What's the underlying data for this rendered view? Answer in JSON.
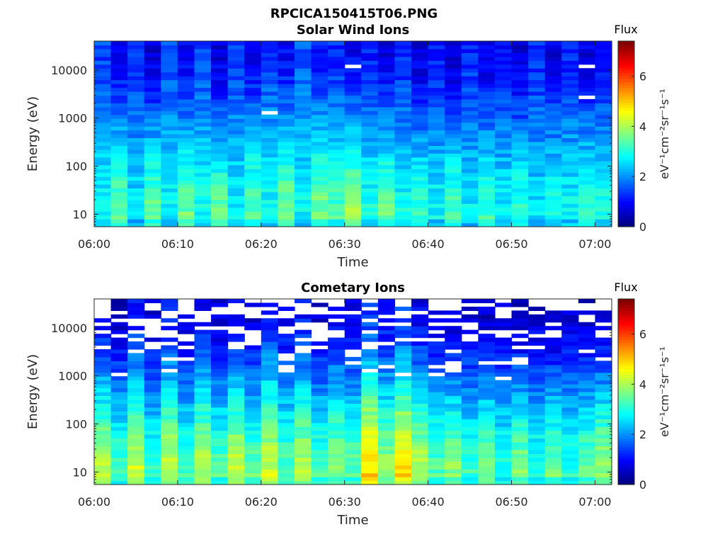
{
  "figure_title": "RPCICA150415T06.PNG",
  "chart_data": [
    {
      "type": "heatmap",
      "title": "Solar Wind Ions",
      "xlabel": "Time",
      "ylabel": "Energy (eV)",
      "x_ticks": [
        "06:00",
        "06:10",
        "06:20",
        "06:30",
        "06:40",
        "06:50",
        "07:00"
      ],
      "x_range": [
        "06:00",
        "07:02"
      ],
      "y_scale": "log",
      "y_ticks": [
        10,
        100,
        1000,
        10000
      ],
      "y_tick_labels": [
        "10",
        "100",
        "1000",
        "10000"
      ],
      "y_range": [
        5.5,
        40000
      ],
      "colorbar": {
        "label": "Flux",
        "units": "eV⁻¹cm⁻²sr⁻¹s⁻¹",
        "range": [
          0,
          7.4
        ],
        "ticks": [
          0,
          2,
          4,
          6
        ],
        "colormap": "jet"
      },
      "n_time_bins": 31,
      "n_energy_bins": 48,
      "low_energy_level_by_bin": [
        2.8,
        3.6,
        2.6,
        3.5,
        2.8,
        3.6,
        2.9,
        3.5,
        2.8,
        3.5,
        2.9,
        3.6,
        2.8,
        3.7,
        3.3,
        3.9,
        3.0,
        3.6,
        2.9,
        3.2,
        2.8,
        3.3,
        2.7,
        3.2,
        2.7,
        3.1,
        2.6,
        3.0,
        2.8,
        3.2,
        3.0
      ],
      "high_energy_level_by_bin": [
        1.4,
        0.8,
        1.3,
        0.7,
        1.4,
        0.8,
        1.4,
        0.7,
        1.3,
        0.8,
        1.4,
        0.9,
        1.6,
        1.0,
        1.2,
        0.8,
        1.1,
        0.7,
        1.2,
        0.6,
        1.1,
        0.6,
        1.2,
        0.7,
        1.1,
        0.6,
        1.2,
        0.7,
        1.1,
        0.7,
        0.9
      ],
      "blank_fraction": 0.01
    },
    {
      "type": "heatmap",
      "title": "Cometary Ions",
      "xlabel": "Time",
      "ylabel": "Energy (eV)",
      "x_ticks": [
        "06:00",
        "06:10",
        "06:20",
        "06:30",
        "06:40",
        "06:50",
        "07:00"
      ],
      "x_range": [
        "06:00",
        "07:02"
      ],
      "y_scale": "log",
      "y_ticks": [
        10,
        100,
        1000,
        10000
      ],
      "y_tick_labels": [
        "10",
        "100",
        "1000",
        "10000"
      ],
      "y_range": [
        5.5,
        40000
      ],
      "colorbar": {
        "label": "Flux",
        "units": "eV⁻¹cm⁻²sr⁻¹s⁻¹",
        "range": [
          0,
          7.4
        ],
        "ticks": [
          0,
          2,
          4,
          6
        ],
        "colormap": "jet"
      },
      "n_time_bins": 31,
      "n_energy_bins": 48,
      "low_energy_level_by_bin": [
        4.1,
        3.3,
        4.3,
        3.2,
        4.2,
        3.3,
        4.1,
        3.4,
        4.2,
        3.5,
        4.3,
        3.4,
        4.1,
        3.3,
        3.8,
        3.5,
        5.0,
        3.9,
        4.9,
        4.1,
        3.4,
        3.8,
        3.2,
        3.7,
        3.1,
        3.7,
        3.1,
        3.6,
        3.1,
        3.5,
        3.9
      ],
      "high_energy_level_by_bin": [
        0.9,
        0.5,
        1.0,
        0.5,
        1.0,
        0.5,
        0.9,
        0.6,
        1.0,
        0.6,
        1.2,
        0.7,
        1.0,
        0.6,
        0.9,
        0.7,
        1.3,
        0.9,
        1.3,
        0.8,
        0.7,
        0.6,
        0.7,
        0.5,
        0.6,
        0.5,
        0.6,
        0.4,
        0.6,
        0.4,
        0.6
      ],
      "blank_fraction": 0.3
    }
  ]
}
